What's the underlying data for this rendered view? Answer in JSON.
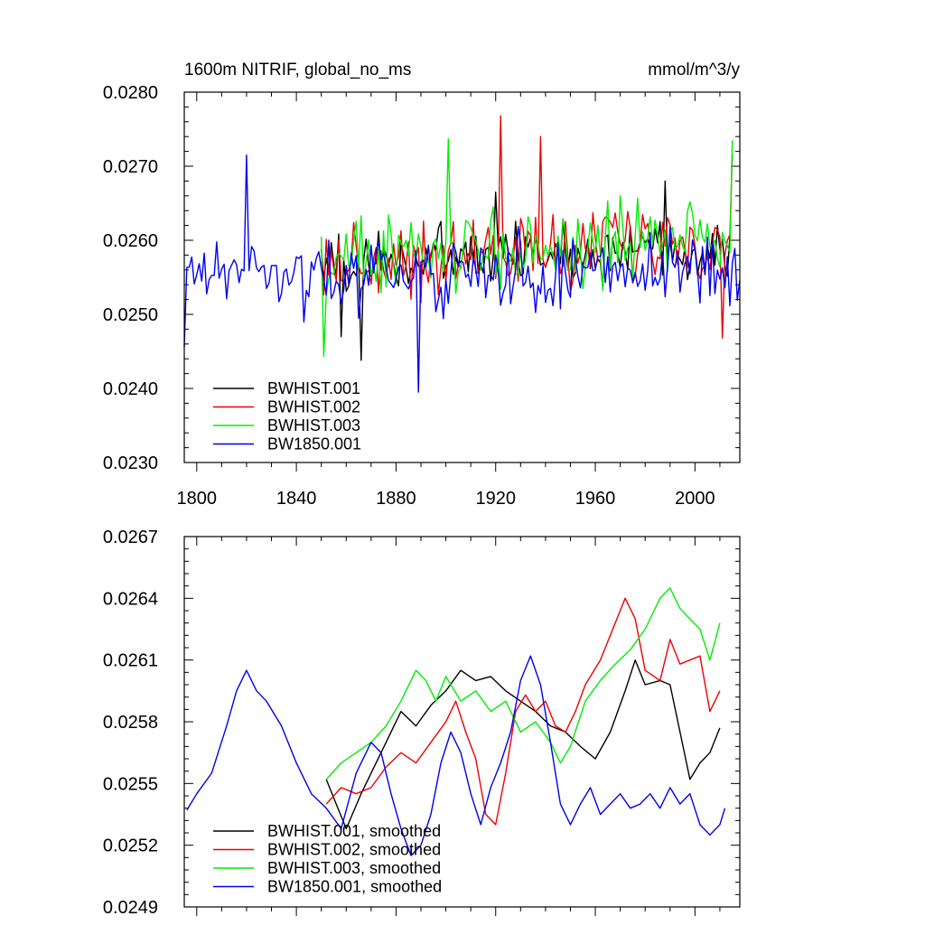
{
  "colors": {
    "BWHIST.001": "#000000",
    "BWHIST.002": "#ee0000",
    "BWHIST.003": "#00ee00",
    "BW1850.001": "#0000ee"
  },
  "chart_data": [
    {
      "type": "line",
      "title": "1600m NITRIF, global_no_ms",
      "units": "mmol/m^3/y",
      "xlabel": "",
      "ylabel": "",
      "xlim": [
        1795,
        2018
      ],
      "ylim": [
        0.023,
        0.028
      ],
      "xticks": [
        1800,
        1840,
        1880,
        1920,
        1960,
        2000
      ],
      "xtick_labels": [
        "1800",
        "1840",
        "1880",
        "1920",
        "1960",
        "2000"
      ],
      "yticks": [
        0.023,
        0.024,
        0.025,
        0.026,
        0.027,
        0.028
      ],
      "ytick_labels": [
        "0.0230",
        "0.0240",
        "0.0250",
        "0.0260",
        "0.0270",
        "0.0280"
      ],
      "legend": "bottom-left",
      "series": [
        {
          "name": "BWHIST.001",
          "color": "#000000",
          "x_start": 1850,
          "x_end": 2014,
          "mean": 0.02568,
          "spread": 0.0004,
          "trend": 1.5e-06,
          "anchors": [
            [
              1850,
              0.02588
            ],
            [
              1858,
              0.0247
            ],
            [
              1866,
              0.02438
            ],
            [
              1920,
              0.02665
            ],
            [
              1988,
              0.0268
            ]
          ]
        },
        {
          "name": "BWHIST.002",
          "color": "#ee0000",
          "x_start": 1850,
          "x_end": 2015,
          "mean": 0.02568,
          "spread": 0.00048,
          "trend": 2e-06,
          "anchors": [
            [
              1922,
              0.02768
            ],
            [
              1938,
              0.0274
            ],
            [
              2011,
              0.02468
            ],
            [
              2015,
              0.02715
            ]
          ]
        },
        {
          "name": "BWHIST.003",
          "color": "#00ee00",
          "x_start": 1850,
          "x_end": 2015,
          "mean": 0.02572,
          "spread": 0.0005,
          "trend": 2e-06,
          "anchors": [
            [
              1851,
              0.02443
            ],
            [
              1901,
              0.02737
            ],
            [
              1998,
              0.02652
            ],
            [
              2015,
              0.02735
            ]
          ]
        },
        {
          "name": "BW1850.001",
          "color": "#0000ee",
          "x_start": 1795,
          "x_end": 2018,
          "mean": 0.02555,
          "spread": 0.00045,
          "trend": 0,
          "anchors": [
            [
              1795,
              0.02456
            ],
            [
              1820,
              0.02715
            ],
            [
              1889,
              0.02395
            ],
            [
              2018,
              0.02546
            ]
          ]
        }
      ]
    },
    {
      "type": "line",
      "title": "",
      "xlabel": "",
      "ylabel": "",
      "xlim": [
        1795,
        2018
      ],
      "ylim": [
        0.0249,
        0.0267
      ],
      "xticks": [
        1800,
        1840,
        1880,
        1920,
        1960,
        2000
      ],
      "yticks": [
        0.0249,
        0.0252,
        0.0255,
        0.0258,
        0.0261,
        0.0264,
        0.0267
      ],
      "ytick_labels": [
        "0.0249",
        "0.0252",
        "0.0255",
        "0.0258",
        "0.0261",
        "0.0264",
        "0.0267"
      ],
      "legend": "bottom-left",
      "series": [
        {
          "name": "BWHIST.001, smoothed",
          "color": "#000000",
          "points": [
            [
              1852,
              0.02552
            ],
            [
              1856,
              0.0254
            ],
            [
              1860,
              0.02528
            ],
            [
              1866,
              0.02545
            ],
            [
              1870,
              0.02555
            ],
            [
              1876,
              0.0257
            ],
            [
              1882,
              0.02585
            ],
            [
              1888,
              0.02578
            ],
            [
              1894,
              0.02588
            ],
            [
              1900,
              0.02595
            ],
            [
              1906,
              0.02605
            ],
            [
              1912,
              0.026
            ],
            [
              1918,
              0.02602
            ],
            [
              1924,
              0.02595
            ],
            [
              1930,
              0.0259
            ],
            [
              1936,
              0.02585
            ],
            [
              1942,
              0.02578
            ],
            [
              1948,
              0.02575
            ],
            [
              1954,
              0.02568
            ],
            [
              1960,
              0.02562
            ],
            [
              1966,
              0.02575
            ],
            [
              1972,
              0.02595
            ],
            [
              1976,
              0.0261
            ],
            [
              1980,
              0.02598
            ],
            [
              1986,
              0.026
            ],
            [
              1990,
              0.02598
            ],
            [
              1994,
              0.02575
            ],
            [
              1998,
              0.02552
            ],
            [
              2002,
              0.0256
            ],
            [
              2006,
              0.02565
            ],
            [
              2010,
              0.02577
            ]
          ]
        },
        {
          "name": "BWHIST.002, smoothed",
          "color": "#ee0000",
          "points": [
            [
              1852,
              0.0254
            ],
            [
              1858,
              0.02548
            ],
            [
              1864,
              0.02545
            ],
            [
              1870,
              0.02548
            ],
            [
              1876,
              0.02558
            ],
            [
              1882,
              0.02565
            ],
            [
              1888,
              0.0256
            ],
            [
              1894,
              0.0257
            ],
            [
              1900,
              0.0258
            ],
            [
              1904,
              0.0259
            ],
            [
              1908,
              0.02575
            ],
            [
              1912,
              0.02562
            ],
            [
              1916,
              0.02535
            ],
            [
              1920,
              0.0253
            ],
            [
              1924,
              0.02555
            ],
            [
              1928,
              0.02585
            ],
            [
              1932,
              0.02593
            ],
            [
              1936,
              0.02585
            ],
            [
              1940,
              0.0259
            ],
            [
              1944,
              0.02578
            ],
            [
              1948,
              0.02575
            ],
            [
              1952,
              0.02585
            ],
            [
              1956,
              0.02598
            ],
            [
              1962,
              0.0261
            ],
            [
              1968,
              0.02628
            ],
            [
              1972,
              0.0264
            ],
            [
              1976,
              0.0263
            ],
            [
              1980,
              0.02605
            ],
            [
              1986,
              0.026
            ],
            [
              1990,
              0.0262
            ],
            [
              1994,
              0.02608
            ],
            [
              1998,
              0.0261
            ],
            [
              2002,
              0.02612
            ],
            [
              2006,
              0.02585
            ],
            [
              2010,
              0.02595
            ]
          ]
        },
        {
          "name": "BWHIST.003, smoothed",
          "color": "#00ee00",
          "points": [
            [
              1852,
              0.02552
            ],
            [
              1858,
              0.0256
            ],
            [
              1864,
              0.02565
            ],
            [
              1870,
              0.0257
            ],
            [
              1876,
              0.02578
            ],
            [
              1882,
              0.0259
            ],
            [
              1888,
              0.02605
            ],
            [
              1892,
              0.026
            ],
            [
              1896,
              0.0259
            ],
            [
              1900,
              0.02602
            ],
            [
              1906,
              0.0259
            ],
            [
              1912,
              0.02595
            ],
            [
              1918,
              0.02585
            ],
            [
              1924,
              0.0259
            ],
            [
              1930,
              0.02575
            ],
            [
              1936,
              0.0258
            ],
            [
              1942,
              0.0257
            ],
            [
              1946,
              0.0256
            ],
            [
              1950,
              0.02568
            ],
            [
              1956,
              0.0259
            ],
            [
              1962,
              0.026
            ],
            [
              1968,
              0.02608
            ],
            [
              1974,
              0.02615
            ],
            [
              1980,
              0.02625
            ],
            [
              1986,
              0.0264
            ],
            [
              1990,
              0.02645
            ],
            [
              1994,
              0.02635
            ],
            [
              1998,
              0.0263
            ],
            [
              2002,
              0.02625
            ],
            [
              2006,
              0.0261
            ],
            [
              2010,
              0.02628
            ]
          ]
        },
        {
          "name": "BW1850.001, smoothed",
          "color": "#0000ee",
          "points": [
            [
              1796,
              0.02537
            ],
            [
              1800,
              0.02545
            ],
            [
              1806,
              0.02555
            ],
            [
              1812,
              0.02578
            ],
            [
              1816,
              0.02595
            ],
            [
              1820,
              0.02605
            ],
            [
              1824,
              0.02595
            ],
            [
              1828,
              0.0259
            ],
            [
              1834,
              0.02578
            ],
            [
              1840,
              0.0256
            ],
            [
              1846,
              0.02545
            ],
            [
              1852,
              0.02538
            ],
            [
              1858,
              0.02528
            ],
            [
              1864,
              0.02555
            ],
            [
              1870,
              0.0257
            ],
            [
              1874,
              0.02565
            ],
            [
              1878,
              0.02545
            ],
            [
              1882,
              0.02528
            ],
            [
              1886,
              0.02515
            ],
            [
              1890,
              0.0252
            ],
            [
              1894,
              0.02535
            ],
            [
              1898,
              0.0256
            ],
            [
              1902,
              0.02575
            ],
            [
              1906,
              0.02565
            ],
            [
              1910,
              0.02545
            ],
            [
              1914,
              0.0253
            ],
            [
              1918,
              0.02548
            ],
            [
              1922,
              0.0256
            ],
            [
              1926,
              0.02575
            ],
            [
              1930,
              0.026
            ],
            [
              1934,
              0.02612
            ],
            [
              1938,
              0.02598
            ],
            [
              1942,
              0.0257
            ],
            [
              1946,
              0.0254
            ],
            [
              1950,
              0.0253
            ],
            [
              1954,
              0.0254
            ],
            [
              1958,
              0.02548
            ],
            [
              1962,
              0.02535
            ],
            [
              1966,
              0.0254
            ],
            [
              1970,
              0.02545
            ],
            [
              1974,
              0.02538
            ],
            [
              1978,
              0.0254
            ],
            [
              1982,
              0.02545
            ],
            [
              1986,
              0.02538
            ],
            [
              1990,
              0.02548
            ],
            [
              1994,
              0.0254
            ],
            [
              1998,
              0.02545
            ],
            [
              2002,
              0.0253
            ],
            [
              2006,
              0.02525
            ],
            [
              2010,
              0.0253
            ],
            [
              2012,
              0.02538
            ]
          ]
        }
      ]
    }
  ]
}
